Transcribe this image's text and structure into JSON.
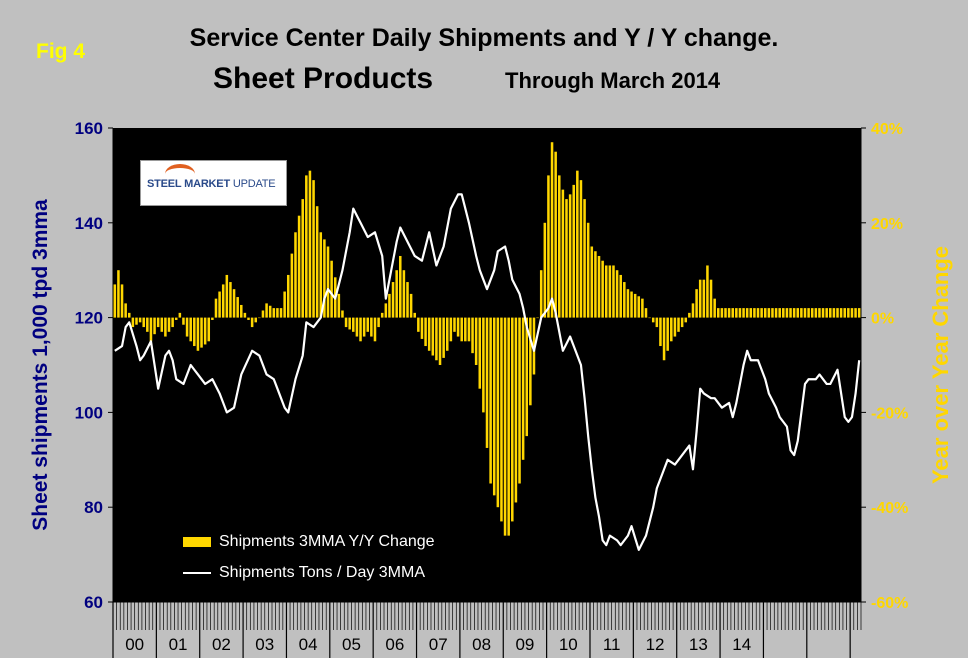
{
  "fig_label": "Fig 4",
  "title_line1": "Service Center Daily Shipments and Y / Y change.",
  "title_line2": "Sheet Products",
  "subtitle": "Through March 2014",
  "logo_text": "STEEL MARKET",
  "logo_text_suffix": "UPDATE",
  "colors": {
    "bars": "#ffd700",
    "line": "#ffffff",
    "left_axis": "#000080",
    "right_axis": "#ffd700",
    "plot_bg": "#000000",
    "page_bg": "#c0c0c0"
  },
  "chart_data": {
    "type": "bar+line",
    "ylabel_left": "Sheet shipments 1,000 tpd 3mma",
    "ylabel_right": "Year over Year Change",
    "ylim_left": [
      60,
      160
    ],
    "ylim_right": [
      -60,
      40
    ],
    "yticks_left": [
      "160",
      "140",
      "120",
      "100",
      "80",
      "60"
    ],
    "yticks_right": [
      "40%",
      "20%",
      "0%",
      "-20%",
      "-40%",
      "-60%"
    ],
    "year_labels": [
      "00",
      "01",
      "02",
      "03",
      "04",
      "05",
      "06",
      "07",
      "08",
      "09",
      "10",
      "11",
      "12",
      "13",
      "14"
    ],
    "series": [
      {
        "name": "Shipments 3MMA Y/Y Change",
        "kind": "bar",
        "unit": "%",
        "anchors": [
          [
            0,
            7
          ],
          [
            1,
            10
          ],
          [
            2,
            7
          ],
          [
            3,
            3
          ],
          [
            4,
            1
          ],
          [
            5,
            -2
          ],
          [
            7,
            -1
          ],
          [
            9,
            -3
          ],
          [
            10,
            -5
          ],
          [
            12,
            -2
          ],
          [
            14,
            -4
          ],
          [
            16,
            -2
          ],
          [
            18,
            1
          ],
          [
            20,
            -4
          ],
          [
            23,
            -7
          ],
          [
            26,
            -5
          ],
          [
            28,
            4
          ],
          [
            30,
            7
          ],
          [
            31,
            9
          ],
          [
            33,
            6
          ],
          [
            36,
            1
          ],
          [
            38,
            -2
          ],
          [
            40,
            0
          ],
          [
            42,
            3
          ],
          [
            44,
            2
          ],
          [
            46,
            2
          ],
          [
            48,
            9
          ],
          [
            50,
            18
          ],
          [
            52,
            25
          ],
          [
            53,
            30
          ],
          [
            54,
            31
          ],
          [
            55,
            29
          ],
          [
            57,
            18
          ],
          [
            59,
            15
          ],
          [
            60,
            12
          ],
          [
            62,
            5
          ],
          [
            64,
            -2
          ],
          [
            66,
            -3
          ],
          [
            68,
            -5
          ],
          [
            70,
            -3
          ],
          [
            72,
            -5
          ],
          [
            74,
            1
          ],
          [
            76,
            5
          ],
          [
            78,
            10
          ],
          [
            79,
            13
          ],
          [
            80,
            10
          ],
          [
            82,
            5
          ],
          [
            84,
            -3
          ],
          [
            86,
            -6
          ],
          [
            88,
            -8
          ],
          [
            90,
            -10
          ],
          [
            92,
            -7
          ],
          [
            94,
            -3
          ],
          [
            96,
            -5
          ],
          [
            98,
            -5
          ],
          [
            100,
            -10
          ],
          [
            102,
            -20
          ],
          [
            104,
            -35
          ],
          [
            106,
            -40
          ],
          [
            107,
            -43
          ],
          [
            108,
            -46
          ],
          [
            109,
            -46
          ],
          [
            110,
            -43
          ],
          [
            112,
            -35
          ],
          [
            114,
            -25
          ],
          [
            116,
            -12
          ],
          [
            117,
            0
          ],
          [
            118,
            10
          ],
          [
            119,
            20
          ],
          [
            120,
            30
          ],
          [
            121,
            37
          ],
          [
            122,
            35
          ],
          [
            123,
            30
          ],
          [
            124,
            27
          ],
          [
            125,
            25
          ],
          [
            126,
            26
          ],
          [
            127,
            28
          ],
          [
            128,
            31
          ],
          [
            129,
            29
          ],
          [
            130,
            25
          ],
          [
            132,
            15
          ],
          [
            134,
            13
          ],
          [
            136,
            11
          ],
          [
            138,
            11
          ],
          [
            140,
            9
          ],
          [
            142,
            6
          ],
          [
            144,
            5
          ],
          [
            146,
            4
          ],
          [
            148,
            0
          ],
          [
            150,
            -2
          ],
          [
            151,
            -6
          ],
          [
            152,
            -9
          ],
          [
            154,
            -5
          ],
          [
            156,
            -3
          ],
          [
            158,
            -1
          ],
          [
            160,
            3
          ],
          [
            161,
            6
          ],
          [
            162,
            8
          ],
          [
            163,
            8
          ],
          [
            164,
            11
          ],
          [
            165,
            8
          ],
          [
            166,
            4
          ],
          [
            167,
            2
          ]
        ]
      },
      {
        "name": "Shipments Tons / Day 3MMA",
        "kind": "line",
        "unit": "1,000 tpd",
        "anchors": [
          [
            0,
            113
          ],
          [
            2,
            114
          ],
          [
            3,
            118
          ],
          [
            4,
            119
          ],
          [
            6,
            114
          ],
          [
            7,
            111
          ],
          [
            8,
            112
          ],
          [
            10,
            115
          ],
          [
            12,
            105
          ],
          [
            14,
            112
          ],
          [
            15,
            113
          ],
          [
            16,
            111
          ],
          [
            17,
            107
          ],
          [
            19,
            106
          ],
          [
            21,
            110
          ],
          [
            23,
            108
          ],
          [
            25,
            106
          ],
          [
            27,
            107
          ],
          [
            29,
            104
          ],
          [
            31,
            100
          ],
          [
            33,
            101
          ],
          [
            35,
            108
          ],
          [
            38,
            113
          ],
          [
            40,
            112
          ],
          [
            42,
            108
          ],
          [
            44,
            107
          ],
          [
            46,
            103
          ],
          [
            47,
            101
          ],
          [
            48,
            100
          ],
          [
            50,
            107
          ],
          [
            52,
            112
          ],
          [
            53,
            119
          ],
          [
            55,
            118
          ],
          [
            57,
            120
          ],
          [
            58,
            124
          ],
          [
            59,
            126
          ],
          [
            61,
            124
          ],
          [
            63,
            130
          ],
          [
            65,
            138
          ],
          [
            66,
            143
          ],
          [
            68,
            140
          ],
          [
            70,
            137
          ],
          [
            72,
            138
          ],
          [
            74,
            133
          ],
          [
            75,
            124
          ],
          [
            76,
            128
          ],
          [
            77,
            132
          ],
          [
            78,
            136
          ],
          [
            79,
            139
          ],
          [
            81,
            136
          ],
          [
            83,
            133
          ],
          [
            85,
            132
          ],
          [
            87,
            138
          ],
          [
            89,
            131
          ],
          [
            91,
            135
          ],
          [
            93,
            143
          ],
          [
            95,
            146
          ],
          [
            96,
            146
          ],
          [
            98,
            140
          ],
          [
            100,
            133
          ],
          [
            101,
            130
          ],
          [
            103,
            126
          ],
          [
            104,
            128
          ],
          [
            105,
            130
          ],
          [
            106,
            134
          ],
          [
            108,
            135
          ],
          [
            109,
            132
          ],
          [
            110,
            128
          ],
          [
            112,
            125
          ],
          [
            113,
            122
          ],
          [
            114,
            118
          ],
          [
            116,
            113
          ],
          [
            118,
            120
          ],
          [
            120,
            122
          ],
          [
            121,
            124
          ],
          [
            122,
            121
          ],
          [
            124,
            113
          ],
          [
            126,
            116
          ],
          [
            127,
            114
          ],
          [
            128,
            112
          ],
          [
            129,
            110
          ],
          [
            130,
            103
          ],
          [
            131,
            95
          ],
          [
            132,
            88
          ],
          [
            133,
            82
          ],
          [
            134,
            78
          ],
          [
            135,
            73
          ],
          [
            136,
            72
          ],
          [
            137,
            74
          ],
          [
            139,
            73
          ],
          [
            140,
            72
          ],
          [
            142,
            74
          ],
          [
            143,
            76
          ],
          [
            145,
            71
          ],
          [
            147,
            74
          ],
          [
            149,
            80
          ],
          [
            150,
            84
          ],
          [
            151,
            86
          ],
          [
            153,
            90
          ],
          [
            155,
            89
          ],
          [
            157,
            91
          ],
          [
            159,
            93
          ],
          [
            160,
            88
          ],
          [
            161,
            96
          ],
          [
            162,
            105
          ],
          [
            163,
            104
          ],
          [
            165,
            103
          ],
          [
            166,
            103
          ],
          [
            168,
            101
          ],
          [
            170,
            102
          ],
          [
            171,
            99
          ],
          [
            172,
            102
          ],
          [
            174,
            110
          ],
          [
            175,
            113
          ],
          [
            176,
            111
          ],
          [
            178,
            111
          ],
          [
            180,
            107
          ],
          [
            181,
            104
          ],
          [
            183,
            101
          ],
          [
            184,
            99
          ],
          [
            186,
            97
          ],
          [
            187,
            92
          ],
          [
            188,
            91
          ],
          [
            189,
            94
          ],
          [
            190,
            100
          ],
          [
            191,
            106
          ],
          [
            192,
            107
          ],
          [
            194,
            107
          ],
          [
            195,
            108
          ],
          [
            197,
            106
          ],
          [
            198,
            106
          ],
          [
            200,
            109
          ],
          [
            202,
            99
          ],
          [
            203,
            98
          ],
          [
            204,
            99
          ],
          [
            205,
            104
          ],
          [
            206,
            111
          ]
        ]
      }
    ],
    "legend_position": "bottom-left"
  }
}
